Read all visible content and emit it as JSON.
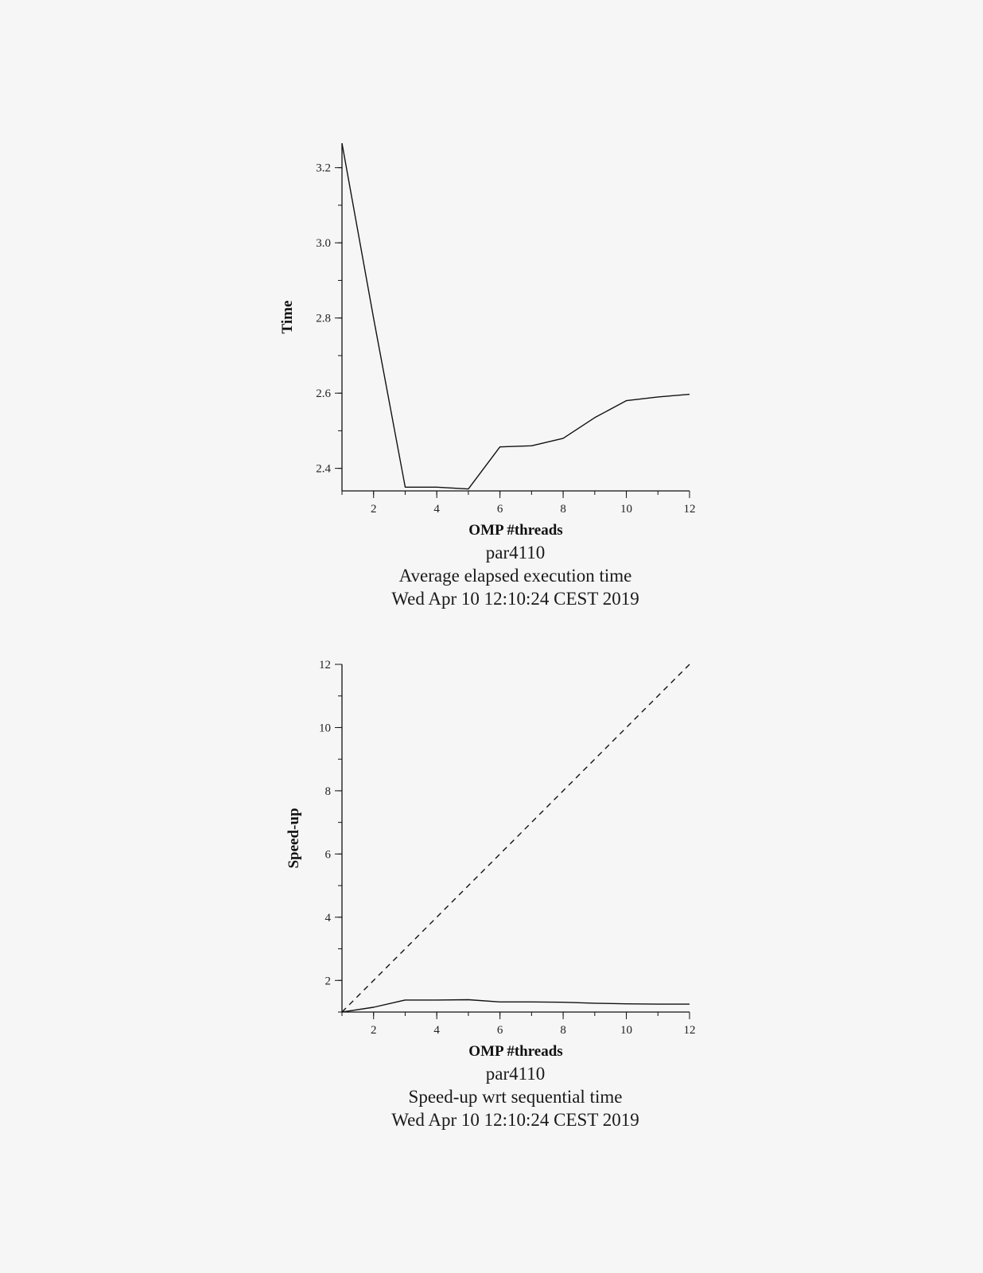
{
  "chart_data": [
    {
      "type": "line",
      "title_lines": [
        "par4110",
        "Average elapsed execution time",
        "Wed Apr 10 12:10:24 CEST 2019"
      ],
      "xlabel": "OMP #threads",
      "ylabel": "Time",
      "xlim": [
        1,
        12
      ],
      "ylim": [
        2.34,
        3.265
      ],
      "x_ticks": [
        2,
        4,
        6,
        8,
        10,
        12
      ],
      "y_ticks": [
        2.4,
        2.6,
        2.8,
        3.0,
        3.2
      ],
      "y_tick_labels": [
        "2.4",
        "2.6",
        "2.8",
        "3.0",
        "3.2"
      ],
      "grid": false,
      "series": [
        {
          "dash": false,
          "x": [
            1,
            2,
            3,
            4,
            5,
            6,
            7,
            8,
            9,
            10,
            11,
            12
          ],
          "y": [
            3.265,
            2.8,
            2.35,
            2.35,
            2.345,
            2.457,
            2.46,
            2.48,
            2.535,
            2.58,
            2.59,
            2.597
          ]
        }
      ]
    },
    {
      "type": "line",
      "title_lines": [
        "par4110",
        "Speed-up wrt sequential time",
        "Wed Apr 10 12:10:24 CEST 2019"
      ],
      "xlabel": "OMP #threads",
      "ylabel": "Speed-up",
      "xlim": [
        1,
        12
      ],
      "ylim": [
        1,
        12
      ],
      "x_ticks": [
        2,
        4,
        6,
        8,
        10,
        12
      ],
      "y_ticks": [
        2,
        4,
        6,
        8,
        10,
        12
      ],
      "y_tick_labels": [
        "2",
        "4",
        "6",
        "8",
        "10",
        "12"
      ],
      "grid": false,
      "series": [
        {
          "dash": false,
          "x": [
            1,
            2,
            3,
            4,
            5,
            6,
            7,
            8,
            9,
            10,
            11,
            12
          ],
          "y": [
            1,
            1.15,
            1.38,
            1.38,
            1.39,
            1.32,
            1.32,
            1.31,
            1.28,
            1.26,
            1.25,
            1.25
          ]
        },
        {
          "dash": true,
          "x": [
            1,
            12
          ],
          "y": [
            1,
            12
          ]
        }
      ]
    }
  ]
}
